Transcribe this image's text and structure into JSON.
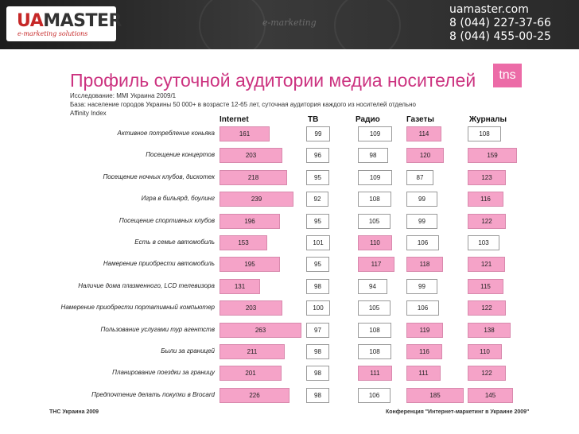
{
  "header": {
    "logo_ua": "UA",
    "logo_master": "MASTER",
    "logo_sub": "e-marketing solutions",
    "watermark": "e-marketing",
    "site": "uamaster.com",
    "phone1": "8 (044) 227-37-66",
    "phone2": "8 (044) 455-00-25"
  },
  "slide": {
    "title": "Профиль суточной аудитории медиа носителей",
    "tns_logo": "tns",
    "study": "Исследование: MMI Украина 2009/1",
    "base": "База: население городов Украины 50 000+ в возрасте 12-65 лет, суточная аудитория каждого из носителей отдельно",
    "index": "Affinity Index",
    "footer_left": "ТНС Украина 2009",
    "footer_right": "Конференция \"Интернет-маркетинг в Украине 2009\""
  },
  "colors": {
    "highlight": "#f5a3c8",
    "title": "#cc3380"
  },
  "chart_data": {
    "type": "table",
    "title": "Профиль суточной аудитории медиа носителей",
    "columns": [
      "Internet",
      "ТВ",
      "Радио",
      "Газеты",
      "Журналы"
    ],
    "rows": [
      {
        "label": "Активное потребление коньяка",
        "values": [
          161,
          99,
          109,
          114,
          108
        ]
      },
      {
        "label": "Посещение концертов",
        "values": [
          203,
          96,
          98,
          120,
          159
        ]
      },
      {
        "label": "Посещение ночных клубов, дискотек",
        "values": [
          218,
          95,
          109,
          87,
          123
        ]
      },
      {
        "label": "Игра в бильярд, боулинг",
        "values": [
          239,
          92,
          108,
          99,
          116
        ]
      },
      {
        "label": "Посещение спортивных клубов",
        "values": [
          196,
          95,
          105,
          99,
          122
        ]
      },
      {
        "label": "Есть в семье автомобиль",
        "values": [
          153,
          101,
          110,
          106,
          103
        ]
      },
      {
        "label": "Намерение приобрести автомобиль",
        "values": [
          195,
          95,
          117,
          118,
          121
        ]
      },
      {
        "label": "Наличие дома плазменного, LCD телевизора",
        "values": [
          131,
          98,
          94,
          99,
          115
        ]
      },
      {
        "label": "Намерение приобрести портативный компьютер",
        "values": [
          203,
          100,
          105,
          106,
          122
        ]
      },
      {
        "label": "Пользование услугами тур агентств",
        "values": [
          263,
          97,
          108,
          119,
          138
        ]
      },
      {
        "label": "Были за границей",
        "values": [
          211,
          98,
          108,
          116,
          110
        ]
      },
      {
        "label": "Планирование поездки за границу",
        "values": [
          201,
          98,
          111,
          111,
          122
        ]
      },
      {
        "label": "Предпочтение делать покупки в Brocard",
        "values": [
          226,
          98,
          106,
          185,
          145
        ]
      }
    ],
    "highlight_threshold": 110
  }
}
